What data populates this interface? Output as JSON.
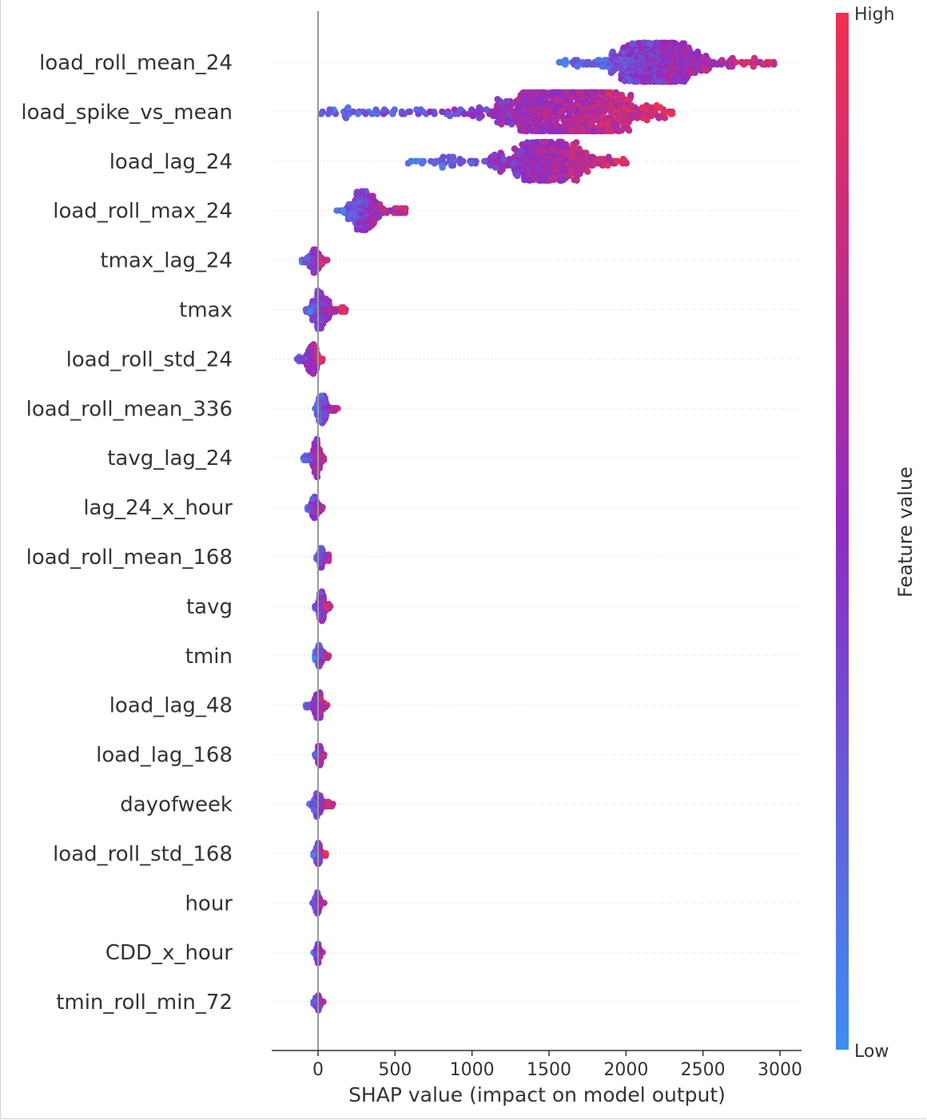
{
  "chart_data": {
    "type": "scatter",
    "subtype": "shap-beeswarm",
    "xlabel": "SHAP value (impact on model output)",
    "xlim": [
      -300,
      3150
    ],
    "xticks": [
      0,
      500,
      1000,
      1500,
      2000,
      2500,
      3000
    ],
    "xtick_labels": [
      "0",
      "500",
      "1000",
      "1500",
      "2000",
      "2500",
      "3000"
    ],
    "colorbar": {
      "label": "Feature value",
      "high_label": "High",
      "low_label": "Low",
      "low_color": "#3d8ef0",
      "mid_color": "#8f2bc2",
      "high_color": "#f0304f"
    },
    "zero_line_color": "#999999",
    "features": [
      {
        "name": "load_roll_mean_24",
        "min": 1550,
        "max": 2980,
        "center": 2200,
        "count": 560
      },
      {
        "name": "load_spike_vs_mean",
        "min": 20,
        "max": 2300,
        "center": 1650,
        "count": 700
      },
      {
        "name": "load_lag_24",
        "min": 580,
        "max": 2010,
        "center": 1500,
        "count": 460
      },
      {
        "name": "load_roll_max_24",
        "min": 120,
        "max": 580,
        "center": 300,
        "count": 360
      },
      {
        "name": "tmax_lag_24",
        "min": -110,
        "max": 60,
        "center": -20,
        "count": 200
      },
      {
        "name": "tmax",
        "min": -80,
        "max": 180,
        "center": 20,
        "count": 300
      },
      {
        "name": "load_roll_std_24",
        "min": -150,
        "max": 30,
        "center": -40,
        "count": 240
      },
      {
        "name": "load_roll_mean_336",
        "min": -20,
        "max": 130,
        "center": 30,
        "count": 260
      },
      {
        "name": "tavg_lag_24",
        "min": -100,
        "max": 40,
        "center": -10,
        "count": 230
      },
      {
        "name": "lag_24_x_hour",
        "min": -70,
        "max": 30,
        "center": -20,
        "count": 170
      },
      {
        "name": "load_roll_mean_168",
        "min": -10,
        "max": 70,
        "center": 20,
        "count": 170
      },
      {
        "name": "tavg",
        "min": -30,
        "max": 80,
        "center": 20,
        "count": 190
      },
      {
        "name": "tmin",
        "min": -20,
        "max": 70,
        "center": 10,
        "count": 160
      },
      {
        "name": "load_lag_48",
        "min": -80,
        "max": 60,
        "center": 0,
        "count": 200
      },
      {
        "name": "load_lag_168",
        "min": -20,
        "max": 40,
        "center": 10,
        "count": 140
      },
      {
        "name": "dayofweek",
        "min": -60,
        "max": 100,
        "center": 0,
        "count": 170
      },
      {
        "name": "load_roll_std_168",
        "min": -30,
        "max": 50,
        "center": 0,
        "count": 150
      },
      {
        "name": "hour",
        "min": -40,
        "max": 40,
        "center": -5,
        "count": 140
      },
      {
        "name": "CDD_x_hour",
        "min": -30,
        "max": 30,
        "center": 0,
        "count": 120
      },
      {
        "name": "tmin_roll_min_72",
        "min": -30,
        "max": 40,
        "center": 0,
        "count": 110
      }
    ]
  }
}
